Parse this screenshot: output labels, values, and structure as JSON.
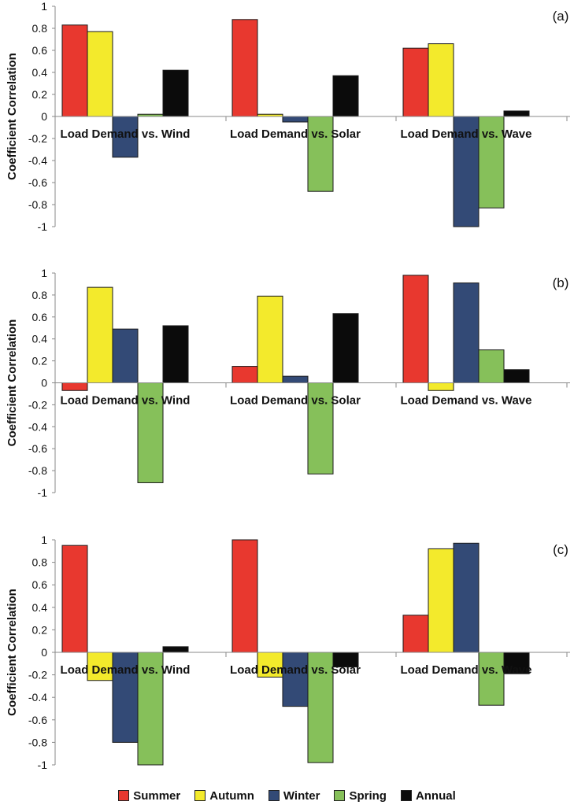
{
  "colors": {
    "Summer": "#e8382f",
    "Autumn": "#f3ea2c",
    "Winter": "#334a76",
    "Spring": "#86c05a",
    "Annual": "#0b0b0b"
  },
  "legend": [
    "Summer",
    "Autumn",
    "Winter",
    "Spring",
    "Annual"
  ],
  "chart_data": [
    {
      "type": "bar",
      "panel_label": "(a)",
      "ylabel": "Coefficient Correlation",
      "ylim": [
        -1,
        1
      ],
      "yticks": [
        "1",
        "0.8",
        "0.6",
        "0.4",
        "0.2",
        "0",
        "-0.2",
        "-0.4",
        "-0.6",
        "-0.8",
        "-1"
      ],
      "categories": [
        "Load Demand vs. Wind",
        "Load Demand vs. Solar",
        "Load Demand vs. Wave"
      ],
      "series": [
        {
          "name": "Summer",
          "values": [
            0.83,
            0.88,
            0.62
          ]
        },
        {
          "name": "Autumn",
          "values": [
            0.77,
            0.02,
            0.66
          ]
        },
        {
          "name": "Winter",
          "values": [
            -0.37,
            -0.05,
            -1.0
          ]
        },
        {
          "name": "Spring",
          "values": [
            0.02,
            -0.68,
            -0.83
          ]
        },
        {
          "name": "Annual",
          "values": [
            0.42,
            0.37,
            0.05
          ]
        }
      ]
    },
    {
      "type": "bar",
      "panel_label": "(b)",
      "ylabel": "Coefficient Correlation",
      "ylim": [
        -1,
        1
      ],
      "yticks": [
        "1",
        "0.8",
        "0.6",
        "0.4",
        "0.2",
        "0",
        "-0.2",
        "-0.4",
        "-0.6",
        "-0.8",
        "-1"
      ],
      "categories": [
        "Load Demand vs. Wind",
        "Load Demand vs. Solar",
        "Load Demand vs. Wave"
      ],
      "series": [
        {
          "name": "Summer",
          "values": [
            -0.07,
            0.15,
            0.98
          ]
        },
        {
          "name": "Autumn",
          "values": [
            0.87,
            0.79,
            -0.07
          ]
        },
        {
          "name": "Winter",
          "values": [
            0.49,
            0.06,
            0.91
          ]
        },
        {
          "name": "Spring",
          "values": [
            -0.91,
            -0.83,
            0.3
          ]
        },
        {
          "name": "Annual",
          "values": [
            0.52,
            0.63,
            0.12
          ]
        }
      ]
    },
    {
      "type": "bar",
      "panel_label": "(c)",
      "ylabel": "Coefficient Correlation",
      "ylim": [
        -1,
        1
      ],
      "yticks": [
        "1",
        "0.8",
        "0.6",
        "0.4",
        "0.2",
        "0",
        "-0.2",
        "-0.4",
        "-0.6",
        "-0.8",
        "-1"
      ],
      "categories": [
        "Load Demand vs. Wind",
        "Load Demand vs. Solar",
        "Load Demand vs. Wave"
      ],
      "series": [
        {
          "name": "Summer",
          "values": [
            0.95,
            1.0,
            0.33
          ]
        },
        {
          "name": "Autumn",
          "values": [
            -0.25,
            -0.22,
            0.92
          ]
        },
        {
          "name": "Winter",
          "values": [
            -0.8,
            -0.48,
            0.97
          ]
        },
        {
          "name": "Spring",
          "values": [
            -1.0,
            -0.98,
            -0.47
          ]
        },
        {
          "name": "Annual",
          "values": [
            0.05,
            -0.13,
            -0.19
          ]
        }
      ]
    }
  ]
}
